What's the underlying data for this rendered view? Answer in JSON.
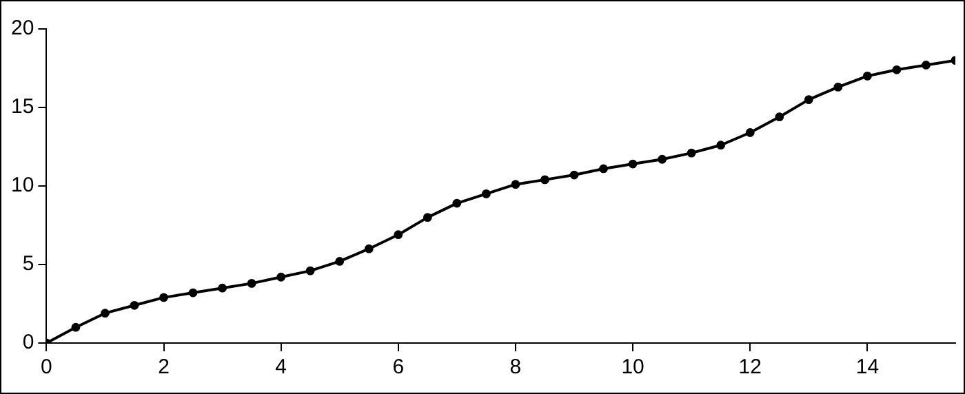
{
  "chart_data": {
    "type": "line",
    "x": [
      0,
      0.5,
      1,
      1.5,
      2,
      2.5,
      3,
      3.5,
      4,
      4.5,
      5,
      5.5,
      6,
      6.5,
      7,
      7.5,
      8,
      8.5,
      9,
      9.5,
      10,
      10.5,
      11,
      11.5,
      12,
      12.5,
      13,
      13.5,
      14,
      14.5,
      15,
      15.5
    ],
    "series": [
      {
        "color": "#000000",
        "values": [
          0,
          1.0,
          1.9,
          2.4,
          2.9,
          3.2,
          3.5,
          3.8,
          4.2,
          4.6,
          5.2,
          6.0,
          6.9,
          8.0,
          8.9,
          9.5,
          10.1,
          10.4,
          10.7,
          11.1,
          11.4,
          11.7,
          12.1,
          12.6,
          13.4,
          14.4,
          15.5,
          16.3,
          17.0,
          17.4,
          17.7,
          18.0
        ]
      }
    ],
    "xlim": [
      0,
      15.5
    ],
    "xticks": [
      0,
      2,
      4,
      6,
      8,
      10,
      12,
      14
    ],
    "ylim": [
      0,
      20
    ],
    "yticks": [
      0,
      5,
      10,
      15,
      20
    ],
    "grid": false,
    "legend": false,
    "marker": "circle",
    "line_style": "solid"
  }
}
